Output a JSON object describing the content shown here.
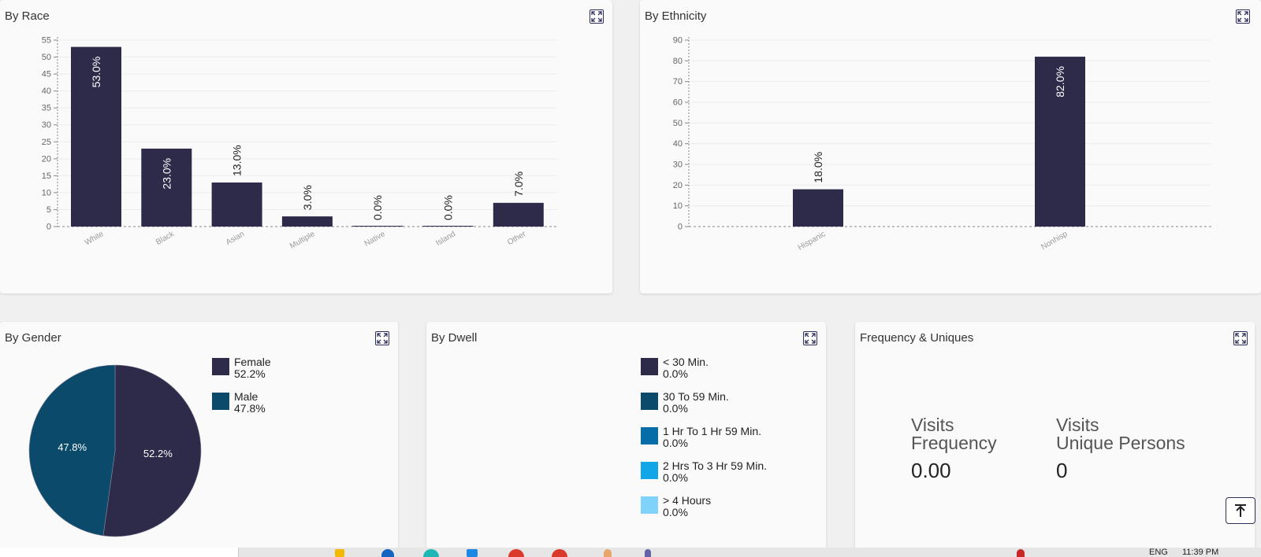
{
  "cards": {
    "race": {
      "title": "By Race"
    },
    "ethnicity": {
      "title": "By Ethnicity"
    },
    "gender": {
      "title": "By Gender"
    },
    "dwell": {
      "title": "By Dwell"
    },
    "frequency": {
      "title": "Frequency & Uniques"
    }
  },
  "chart_data": [
    {
      "type": "bar",
      "title": "By Race",
      "categories": [
        "White",
        "Black",
        "Asian",
        "Multiple",
        "Native",
        "Island",
        "Other"
      ],
      "values": [
        53.0,
        23.0,
        13.0,
        3.0,
        0.0,
        0.0,
        7.0
      ],
      "data_labels": [
        "53.0%",
        "23.0%",
        "13.0%",
        "3.0%",
        "0.0%",
        "0.0%",
        "7.0%"
      ],
      "ylim": [
        0,
        55
      ],
      "yticks": [
        0,
        5,
        10,
        15,
        20,
        25,
        30,
        35,
        40,
        45,
        50,
        55
      ],
      "color": "#2d2a4a",
      "grid": true
    },
    {
      "type": "bar",
      "title": "By Ethnicity",
      "categories": [
        "Hispanic",
        "Nonhisp"
      ],
      "values": [
        18.0,
        82.0
      ],
      "data_labels": [
        "18.0%",
        "82.0%"
      ],
      "ylim": [
        0,
        90
      ],
      "yticks": [
        0,
        10,
        20,
        30,
        40,
        50,
        60,
        70,
        80,
        90
      ],
      "color": "#2d2a4a",
      "grid": true
    },
    {
      "type": "pie",
      "title": "By Gender",
      "categories": [
        "Female",
        "Male"
      ],
      "values": [
        52.2,
        47.8
      ],
      "data_labels": [
        "52.2%",
        "47.8%"
      ],
      "colors": [
        "#2d2a4a",
        "#0b4a6b"
      ],
      "legend": "right"
    },
    {
      "type": "pie",
      "title": "By Dwell",
      "categories": [
        "< 30 Min.",
        "30 To 59 Min.",
        "1 Hr To 1 Hr 59 Min.",
        "2 Hrs To 3 Hr 59 Min.",
        "> 4 Hours"
      ],
      "values": [
        0.0,
        0.0,
        0.0,
        0.0,
        0.0
      ],
      "colors": [
        "#2d2a4a",
        "#0b4a6b",
        "#066da8",
        "#11a6e8",
        "#7fd3fb"
      ],
      "legend": "right"
    }
  ],
  "gender_legend": [
    {
      "label": "Female",
      "value": "52.2%",
      "color": "#2d2a4a"
    },
    {
      "label": "Male",
      "value": "47.8%",
      "color": "#0b4a6b"
    }
  ],
  "dwell_legend": [
    {
      "label": "< 30 Min.",
      "value": "0.0%",
      "color": "#2d2a4a"
    },
    {
      "label": "30 To 59 Min.",
      "value": "0.0%",
      "color": "#0b4a6b"
    },
    {
      "label": "1 Hr To 1 Hr 59 Min.",
      "value": "0.0%",
      "color": "#066da8"
    },
    {
      "label": "2 Hrs To 3 Hr 59 Min.",
      "value": "0.0%",
      "color": "#11a6e8"
    },
    {
      "label": "> 4 Hours",
      "value": "0.0%",
      "color": "#7fd3fb"
    }
  ],
  "metrics": {
    "frequency": {
      "line1": "Visits",
      "line2": "Frequency",
      "value": "0.00"
    },
    "uniques": {
      "line1": "Visits",
      "line2": "Unique Persons",
      "value": "0"
    }
  },
  "taskbar": {
    "lang": "ENG",
    "time": "11:39 PM"
  }
}
